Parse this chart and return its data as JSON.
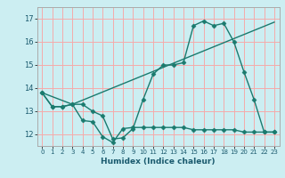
{
  "xlabel": "Humidex (Indice chaleur)",
  "background_color": "#cceef2",
  "grid_color": "#f5aaaa",
  "line_color": "#1a7a6e",
  "xlim": [
    -0.5,
    23.5
  ],
  "ylim": [
    11.5,
    17.5
  ],
  "yticks": [
    12,
    13,
    14,
    15,
    16,
    17
  ],
  "xticks": [
    0,
    1,
    2,
    3,
    4,
    5,
    6,
    7,
    8,
    9,
    10,
    11,
    12,
    13,
    14,
    15,
    16,
    17,
    18,
    19,
    20,
    21,
    22,
    23
  ],
  "line1_x": [
    0,
    1,
    2,
    3,
    4,
    5,
    6,
    7,
    8,
    9,
    10,
    11,
    12,
    13,
    14,
    15,
    16,
    17,
    18,
    19,
    20,
    21,
    22,
    23
  ],
  "line1_y": [
    13.8,
    13.2,
    13.2,
    13.3,
    13.3,
    13.0,
    12.8,
    11.8,
    11.85,
    12.25,
    13.5,
    14.6,
    15.0,
    15.0,
    15.1,
    16.7,
    16.9,
    16.7,
    16.8,
    16.0,
    14.7,
    13.5,
    12.1,
    12.1
  ],
  "line2_x": [
    0,
    1,
    2,
    3,
    4,
    5,
    6,
    7,
    8,
    9,
    10,
    11,
    12,
    13,
    14,
    15,
    16,
    17,
    18,
    19,
    20,
    21,
    22,
    23
  ],
  "line2_y": [
    13.8,
    13.2,
    13.2,
    13.3,
    12.6,
    12.55,
    11.9,
    11.65,
    12.25,
    12.3,
    12.3,
    12.3,
    12.3,
    12.3,
    12.3,
    12.2,
    12.2,
    12.2,
    12.2,
    12.2,
    12.1,
    12.1,
    12.1,
    12.1
  ],
  "line3_x": [
    0,
    3,
    23
  ],
  "line3_y": [
    13.8,
    13.3,
    16.85
  ]
}
